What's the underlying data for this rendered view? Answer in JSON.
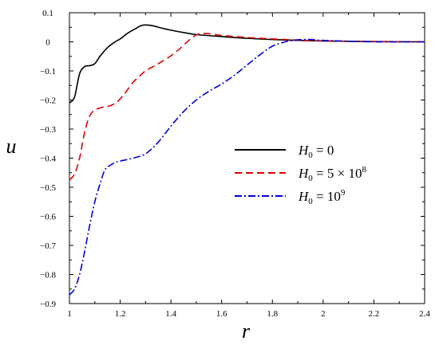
{
  "chart_data": {
    "type": "line",
    "title": "",
    "xlabel": "r",
    "ylabel": "u",
    "xlim": [
      1,
      2.4
    ],
    "ylim": [
      -0.9,
      0.1
    ],
    "xticks": [
      1,
      1.2,
      1.4,
      1.6,
      1.8,
      2,
      2.2,
      2.4
    ],
    "xtick_labels": [
      "1",
      "1.2",
      "1.4",
      "1.6",
      "1.8",
      "2",
      "2.2",
      "2.4"
    ],
    "yticks": [
      0.1,
      0,
      -0.1,
      -0.2,
      -0.3,
      -0.4,
      -0.5,
      -0.6,
      -0.7,
      -0.8,
      -0.9
    ],
    "ytick_labels": [
      "0.1",
      "0",
      "−0.1",
      "−0.2",
      "−0.3",
      "−0.4",
      "−0.5",
      "−0.6",
      "−0.7",
      "−0.8",
      "−0.9"
    ],
    "grid": false,
    "legend_position": "center-right",
    "series": [
      {
        "name": "H0 = 0",
        "label_parts": {
          "var": "H",
          "sub": "0",
          "rhs": " = 0",
          "sup": ""
        },
        "color": "#000000",
        "style": "solid",
        "x": [
          1.0,
          1.02,
          1.04,
          1.06,
          1.08,
          1.1,
          1.12,
          1.15,
          1.18,
          1.2,
          1.23,
          1.26,
          1.28,
          1.3,
          1.33,
          1.36,
          1.4,
          1.45,
          1.5,
          1.6,
          1.7,
          1.8,
          1.9,
          2.0,
          2.2,
          2.4
        ],
        "y": [
          -0.21,
          -0.19,
          -0.11,
          -0.085,
          -0.082,
          -0.075,
          -0.05,
          -0.02,
          0.0,
          0.01,
          0.03,
          0.045,
          0.055,
          0.058,
          0.055,
          0.048,
          0.04,
          0.032,
          0.025,
          0.018,
          0.012,
          0.008,
          0.005,
          0.003,
          0.001,
          0.0
        ]
      },
      {
        "name": "H0 = 5 × 10^8",
        "label_parts": {
          "var": "H",
          "sub": "0",
          "rhs": " = 5 × 10",
          "sup": "8"
        },
        "color": "#dd0000",
        "style": "dashed",
        "x": [
          1.0,
          1.02,
          1.04,
          1.06,
          1.08,
          1.1,
          1.13,
          1.16,
          1.19,
          1.22,
          1.25,
          1.28,
          1.3,
          1.33,
          1.36,
          1.4,
          1.44,
          1.48,
          1.51,
          1.55,
          1.6,
          1.7,
          1.8,
          1.9,
          2.0,
          2.2,
          2.4
        ],
        "y": [
          -0.475,
          -0.455,
          -0.4,
          -0.31,
          -0.255,
          -0.235,
          -0.225,
          -0.22,
          -0.205,
          -0.175,
          -0.14,
          -0.115,
          -0.1,
          -0.085,
          -0.07,
          -0.048,
          -0.02,
          0.012,
          0.027,
          0.028,
          0.022,
          0.015,
          0.01,
          0.006,
          0.003,
          0.001,
          0.0
        ]
      },
      {
        "name": "H0 = 10^9",
        "label_parts": {
          "var": "H",
          "sub": "0",
          "rhs": " = 10",
          "sup": "9"
        },
        "color": "#0000dd",
        "style": "dashdot",
        "x": [
          1.0,
          1.02,
          1.04,
          1.06,
          1.08,
          1.1,
          1.12,
          1.14,
          1.16,
          1.18,
          1.2,
          1.25,
          1.3,
          1.35,
          1.4,
          1.45,
          1.5,
          1.55,
          1.6,
          1.65,
          1.7,
          1.75,
          1.8,
          1.85,
          1.9,
          1.95,
          2.0,
          2.2,
          2.4
        ],
        "y": [
          -0.87,
          -0.85,
          -0.8,
          -0.72,
          -0.63,
          -0.55,
          -0.49,
          -0.44,
          -0.425,
          -0.415,
          -0.41,
          -0.4,
          -0.385,
          -0.345,
          -0.29,
          -0.24,
          -0.2,
          -0.17,
          -0.145,
          -0.115,
          -0.08,
          -0.045,
          -0.015,
          0.0,
          0.007,
          0.008,
          0.005,
          0.0,
          0.0
        ]
      }
    ]
  }
}
